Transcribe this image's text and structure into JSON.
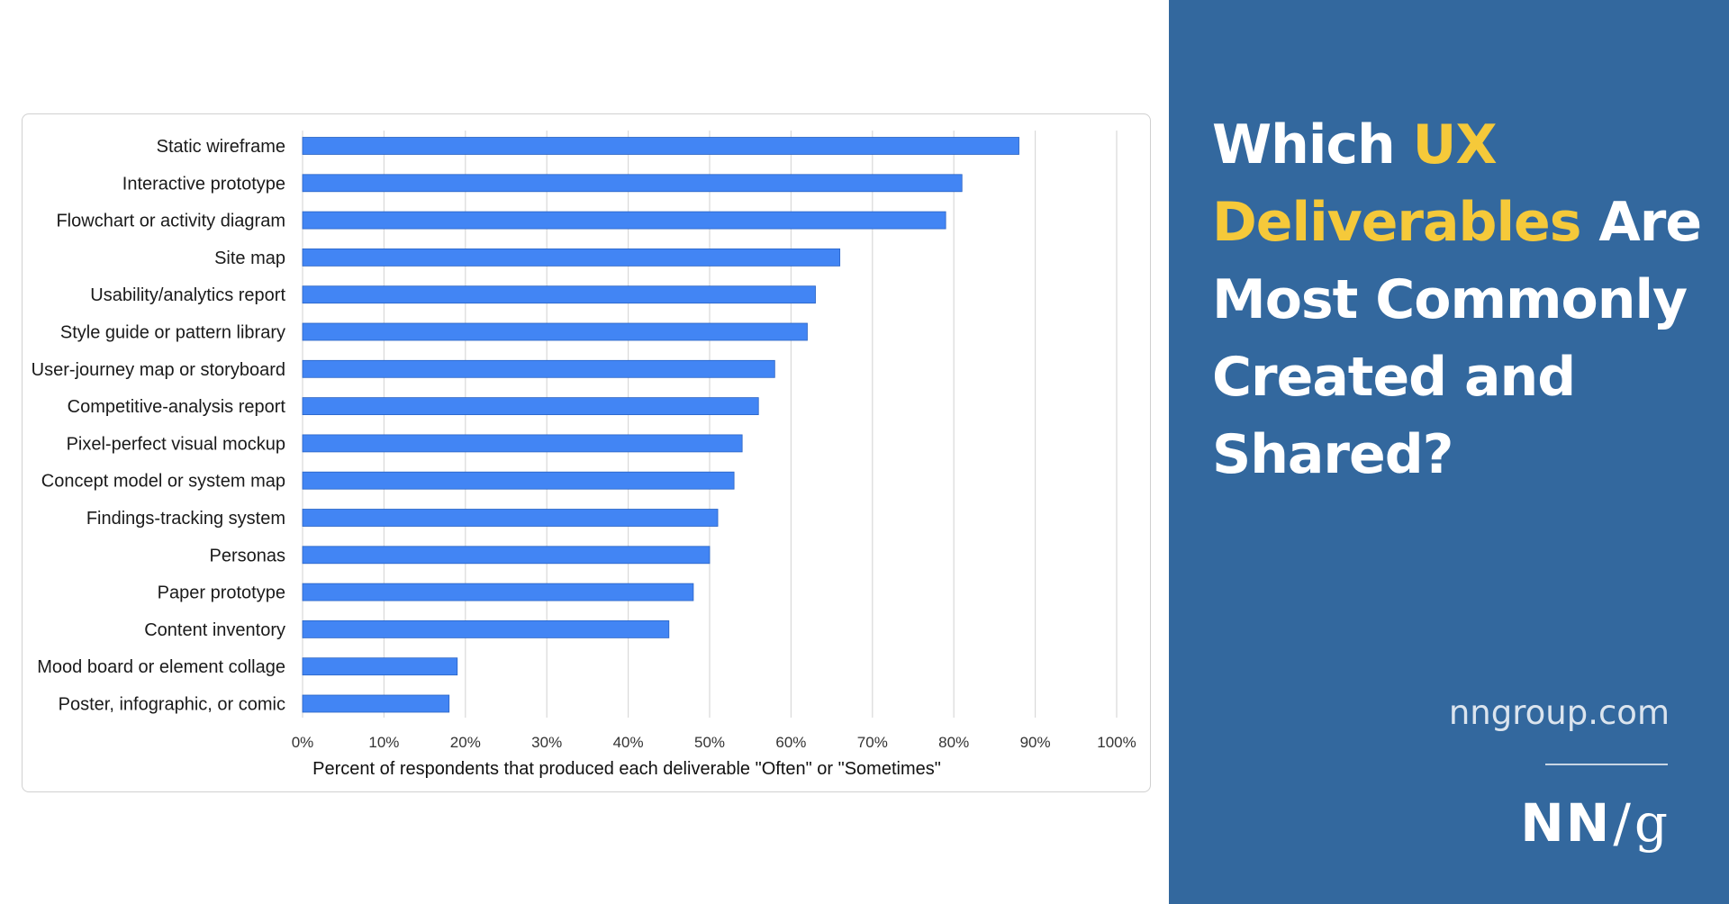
{
  "chart_data": {
    "type": "bar",
    "orientation": "horizontal",
    "categories": [
      "Static wireframe",
      "Interactive prototype",
      "Flowchart or activity diagram",
      "Site map",
      "Usability/analytics report",
      "Style guide or pattern library",
      "User-journey map or storyboard",
      "Competitive-analysis report",
      "Pixel-perfect visual mockup",
      "Concept model or system map",
      "Findings-tracking system",
      "Personas",
      "Paper prototype",
      "Content inventory",
      "Mood board or element collage",
      "Poster, infographic, or comic"
    ],
    "values": [
      88,
      81,
      79,
      66,
      63,
      62,
      58,
      56,
      54,
      53,
      51,
      50,
      48,
      45,
      19,
      18
    ],
    "xlabel": "Percent of respondents that produced each deliverable \"Often\" or \"Sometimes\"",
    "xlim": [
      0,
      100
    ],
    "xticks": [
      "0%",
      "10%",
      "20%",
      "30%",
      "40%",
      "50%",
      "60%",
      "70%",
      "80%",
      "90%",
      "100%"
    ],
    "grid": "vertical",
    "bar_color": "#4285f4"
  },
  "side_panel": {
    "headline_parts": [
      {
        "text": "Which ",
        "highlight": false
      },
      {
        "text": "UX Deliverables",
        "highlight": true
      },
      {
        "text": " Are Most Commonly Created and Shared?",
        "highlight": false
      }
    ],
    "site": "nngroup.com",
    "logo": {
      "left": "NN",
      "slash": "/",
      "right": "g"
    },
    "background_color": "#33689e",
    "highlight_color": "#f5c93a"
  }
}
